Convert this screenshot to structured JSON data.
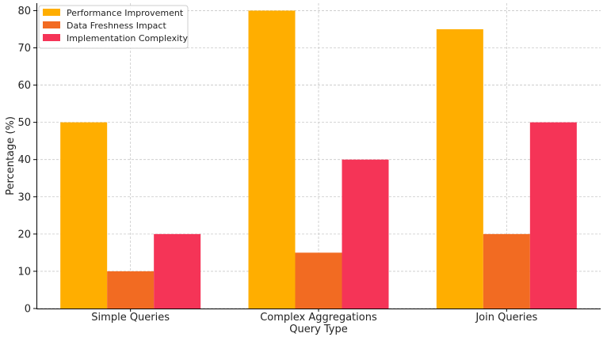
{
  "chart_data": {
    "type": "bar",
    "categories": [
      "Simple Queries",
      "Complex Aggregations",
      "Join Queries"
    ],
    "series": [
      {
        "name": "Performance Improvement",
        "values": [
          50,
          80,
          75
        ],
        "color": "#FFAE00"
      },
      {
        "name": "Data Freshness Impact",
        "values": [
          10,
          15,
          20
        ],
        "color": "#F26B22"
      },
      {
        "name": "Implementation Complexity",
        "values": [
          20,
          40,
          50
        ],
        "color": "#F53457"
      }
    ],
    "title": "",
    "xlabel": "Query Type",
    "ylabel": "Percentage (%)",
    "ylim": [
      0,
      82
    ],
    "yticks": [
      0,
      10,
      20,
      30,
      40,
      50,
      60,
      70,
      80
    ],
    "grid": true,
    "legend_position": "top-left"
  }
}
